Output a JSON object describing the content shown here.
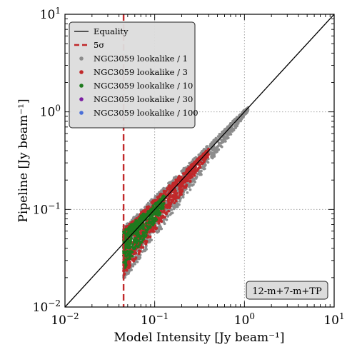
{
  "chart_data": {
    "type": "scatter",
    "xscale": "log",
    "yscale": "log",
    "xlim": [
      0.01,
      10
    ],
    "ylim": [
      0.01,
      10
    ],
    "xlabel": "Model Intensity [Jy beam⁻¹]",
    "ylabel": "Pipeline [Jy beam⁻¹]",
    "x_ticks": [
      0.01,
      0.1,
      1,
      10
    ],
    "y_ticks": [
      0.01,
      0.1,
      1,
      10
    ],
    "grid": true,
    "legend_position": "top-left",
    "annotation": "12-m+7-m+TP",
    "reference_lines": [
      {
        "name": "Equality",
        "kind": "line",
        "relation": "y = x",
        "color": "#000000",
        "style": "solid"
      },
      {
        "name": "5σ",
        "kind": "vertical",
        "x": 0.045,
        "color": "#c0282a",
        "style": "dashed"
      }
    ],
    "series": [
      {
        "name": "NGC3059 lookalike / 1",
        "color": "#8c8c8c",
        "x_range": [
          0.045,
          1.1
        ],
        "trend": "y ≈ x",
        "scatter_dex_low": 0.35,
        "scatter_dex_high": 0.03
      },
      {
        "name": "NGC3059 lookalike / 3",
        "color": "#c0282a",
        "x_range": [
          0.045,
          0.4
        ],
        "trend": "y ≈ x",
        "scatter_dex_low": 0.3,
        "scatter_dex_high": 0.05
      },
      {
        "name": "NGC3059 lookalike / 10",
        "color": "#1e7a1e",
        "x_range": [
          0.045,
          0.13
        ],
        "trend": "y ≈ x",
        "scatter_dex_low": 0.25,
        "scatter_dex_high": 0.08
      },
      {
        "name": "NGC3059 lookalike / 30",
        "color": "#7b1fa2",
        "x_range": [],
        "trend": "",
        "scatter_dex_low": 0,
        "scatter_dex_high": 0
      },
      {
        "name": "NGC3059 lookalike / 100",
        "color": "#4a6fd8",
        "x_range": [],
        "trend": "",
        "scatter_dex_low": 0,
        "scatter_dex_high": 0
      }
    ]
  }
}
